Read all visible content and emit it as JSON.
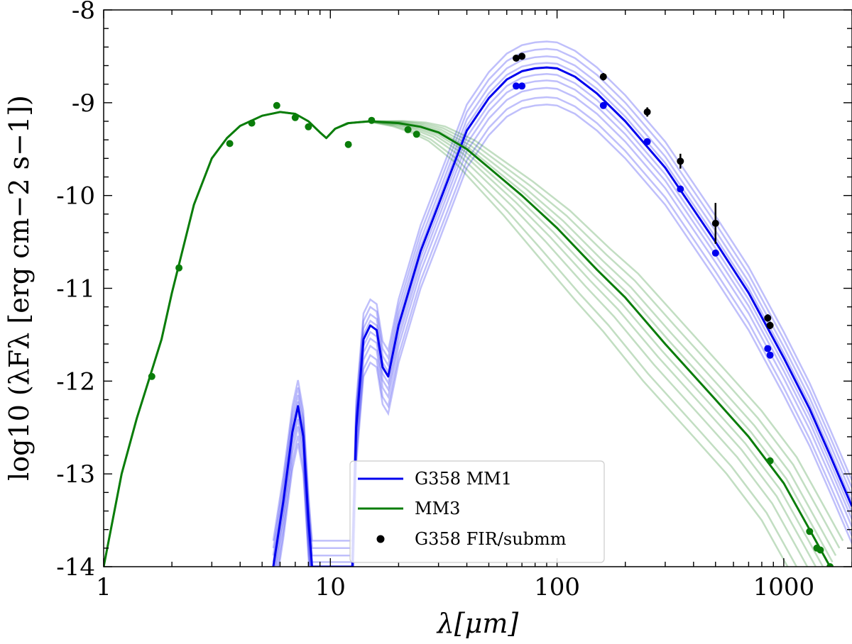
{
  "chart_data": {
    "type": "line",
    "xscale": "log",
    "xlim": [
      1,
      2000
    ],
    "ylim": [
      -14,
      -8
    ],
    "xlabel": "λ[μm]",
    "ylabel": "log10 (λFλ [erg cm−2 s−1])",
    "xticks": [
      {
        "value": 1,
        "label": "1"
      },
      {
        "value": 10,
        "label": "10"
      },
      {
        "value": 100,
        "label": "100"
      },
      {
        "value": 1000,
        "label": "1000"
      }
    ],
    "yticks": [
      {
        "value": -8,
        "label": "-8"
      },
      {
        "value": -9,
        "label": "-9"
      },
      {
        "value": -10,
        "label": "-10"
      },
      {
        "value": -11,
        "label": "-11"
      },
      {
        "value": -12,
        "label": "-12"
      },
      {
        "value": -13,
        "label": "-13"
      },
      {
        "value": -14,
        "label": "-14"
      }
    ],
    "legend_position": "lower-center",
    "grid": false,
    "series": [
      {
        "name": "G358 MM1",
        "color": "#0000ee",
        "style": "line",
        "x": [
          5.6,
          6.2,
          6.8,
          7.2,
          7.6,
          8.0,
          8.3,
          12.5,
          13.0,
          14.0,
          15.0,
          16.0,
          17.0,
          18.0,
          20.0,
          25.0,
          30.0,
          40.0,
          50.0,
          60.0,
          70.0,
          80.0,
          90.0,
          100.0,
          120.0,
          150.0,
          200.0,
          300.0,
          400.0,
          500.0,
          700.0,
          1000.0,
          1300.0,
          1600.0,
          2000.0
        ],
        "y": [
          -14.0,
          -13.3,
          -12.55,
          -12.27,
          -12.6,
          -13.5,
          -14.0,
          -14.0,
          -12.5,
          -11.55,
          -11.4,
          -11.45,
          -11.85,
          -11.95,
          -11.4,
          -10.6,
          -10.1,
          -9.3,
          -8.95,
          -8.75,
          -8.66,
          -8.63,
          -8.62,
          -8.63,
          -8.72,
          -8.9,
          -9.2,
          -9.7,
          -10.15,
          -10.5,
          -11.05,
          -11.75,
          -12.3,
          -12.8,
          -13.35
        ]
      },
      {
        "name": "MM3",
        "color": "#0a7d0a",
        "style": "line",
        "x": [
          1.0,
          1.2,
          1.4,
          1.6,
          1.8,
          2.0,
          2.5,
          3.0,
          3.5,
          4.0,
          5.0,
          6.0,
          7.0,
          8.0,
          9.0,
          9.6,
          10.5,
          12.0,
          15.0,
          20.0,
          25.0,
          30.0,
          40.0,
          50.0,
          70.0,
          100.0,
          150.0,
          200.0,
          300.0,
          500.0,
          700.0,
          1000.0,
          1300.0,
          1600.0
        ],
        "y": [
          -14.0,
          -13.0,
          -12.4,
          -11.95,
          -11.55,
          -11.05,
          -10.1,
          -9.6,
          -9.38,
          -9.25,
          -9.14,
          -9.1,
          -9.12,
          -9.2,
          -9.32,
          -9.38,
          -9.28,
          -9.22,
          -9.2,
          -9.22,
          -9.26,
          -9.32,
          -9.5,
          -9.7,
          -10.0,
          -10.35,
          -10.8,
          -11.1,
          -11.6,
          -12.2,
          -12.6,
          -13.1,
          -13.6,
          -14.0
        ]
      },
      {
        "name": "G358 FIR/submm",
        "color": "#000000",
        "style": "points",
        "x": [
          66,
          70,
          160,
          250,
          350,
          500,
          850,
          870
        ],
        "y": [
          -8.52,
          -8.5,
          -8.72,
          -9.1,
          -9.63,
          -10.3,
          -11.32,
          -11.4
        ],
        "yerr": [
          0.03,
          0.03,
          0.04,
          0.05,
          0.08,
          0.22,
          0.04,
          0.04
        ]
      },
      {
        "name": "",
        "color": "#0000ee",
        "style": "points",
        "x": [
          66,
          70,
          160,
          250,
          350,
          500,
          850,
          870
        ],
        "y": [
          -8.82,
          -8.82,
          -9.03,
          -9.42,
          -9.93,
          -10.62,
          -11.65,
          -11.72
        ]
      },
      {
        "name": "",
        "color": "#0a7d0a",
        "style": "points",
        "x": [
          1.63,
          2.15,
          3.6,
          4.5,
          5.8,
          7.0,
          8.0,
          12.0,
          15.2,
          22.0,
          24.0,
          870,
          1300,
          1400,
          1450,
          1600
        ],
        "y": [
          -11.95,
          -10.78,
          -9.44,
          -9.22,
          -9.03,
          -9.16,
          -9.26,
          -9.45,
          -9.19,
          -9.29,
          -9.34,
          -12.86,
          -13.62,
          -13.8,
          -13.82,
          -14.0
        ]
      }
    ],
    "model_bands": [
      {
        "color": "#0000ee",
        "count": 9
      },
      {
        "color": "#0a7d0a",
        "count": 9
      }
    ]
  }
}
